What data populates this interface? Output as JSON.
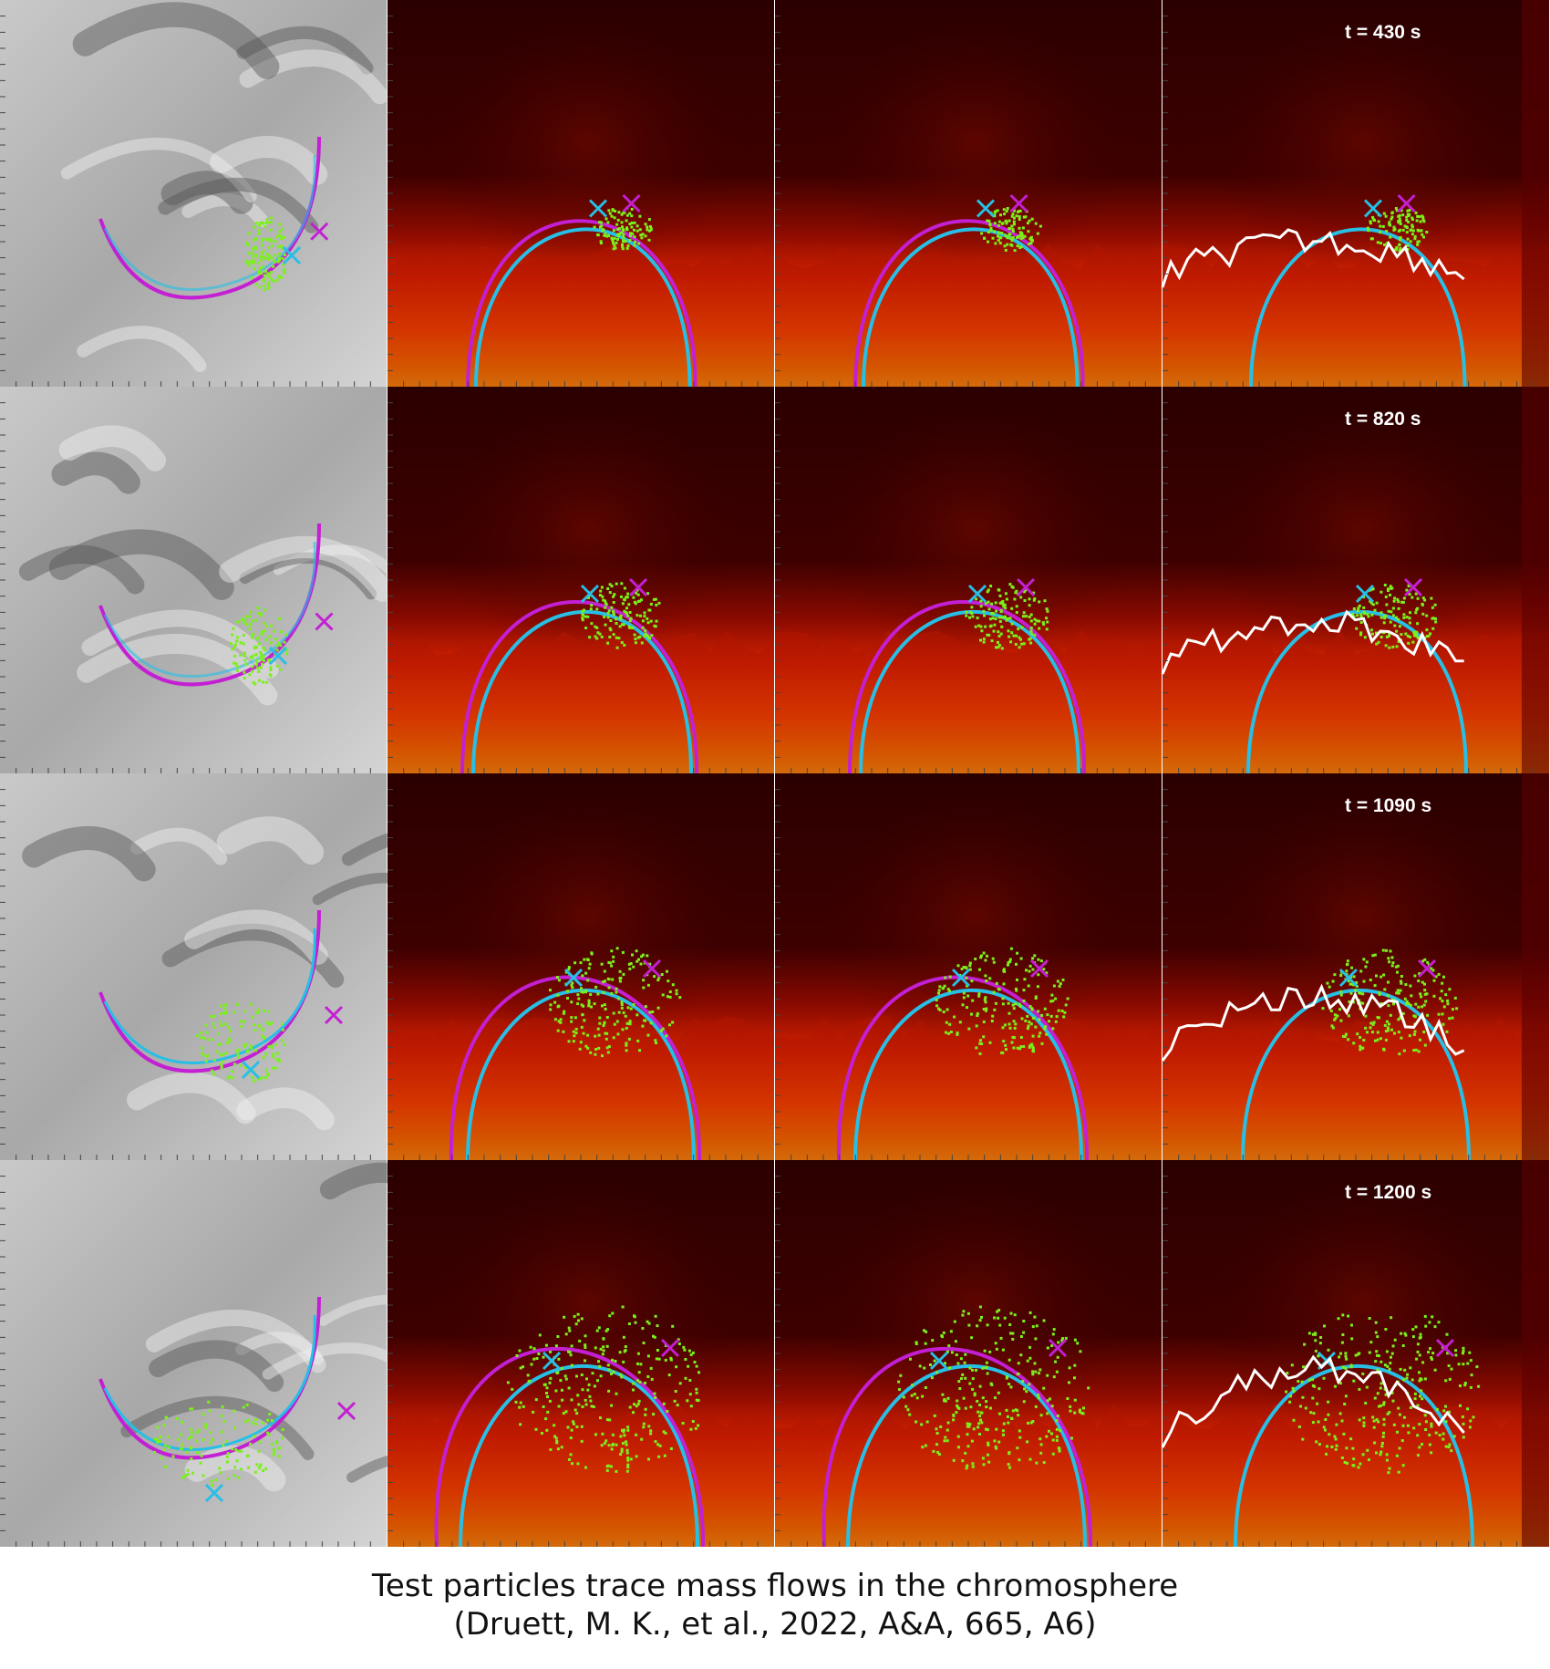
{
  "figure": {
    "rows": [
      {
        "time_label": "t = 430 s",
        "spread": 0.15
      },
      {
        "time_label": "t = 820 s",
        "spread": 0.3
      },
      {
        "time_label": "t = 1090 s",
        "spread": 0.6
      },
      {
        "time_label": "t = 1200 s",
        "spread": 1.0
      }
    ],
    "colors": {
      "field_line_magenta": "#c31fd3",
      "field_line_cyan": "#27bfe6",
      "particles_green": "#7cf01c",
      "height_profile_white": "#ffffff",
      "background_dark": "#2a0000",
      "hot_orange": "#ff8a00",
      "hot_yellow": "#ffd21a"
    }
  },
  "caption": {
    "line1": "Test particles trace mass flows in the chromosphere",
    "line2": "(Druett, M. K., et al., 2022, A&A, 665, A6)"
  }
}
